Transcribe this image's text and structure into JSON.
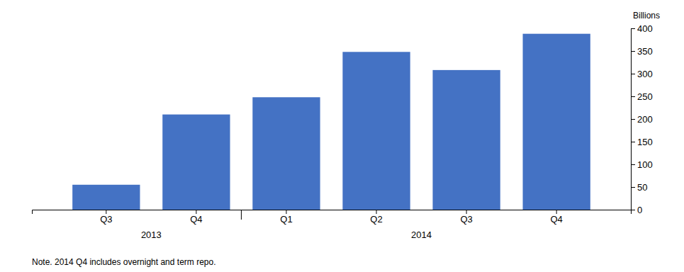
{
  "chart_data": {
    "type": "bar",
    "categories": [
      "Q3",
      "Q4",
      "Q1",
      "Q2",
      "Q3",
      "Q4"
    ],
    "values": [
      55,
      210,
      248,
      348,
      308,
      388
    ],
    "color": "#4472C4",
    "y_label": "Billions",
    "ylim": [
      0,
      400
    ],
    "yticks": [
      0,
      50,
      100,
      150,
      200,
      250,
      300,
      350,
      400
    ],
    "annotations": [
      "2013",
      "2014"
    ],
    "note": "Note. 2014 Q4 includes overnight and term repo.",
    "grid": false
  }
}
